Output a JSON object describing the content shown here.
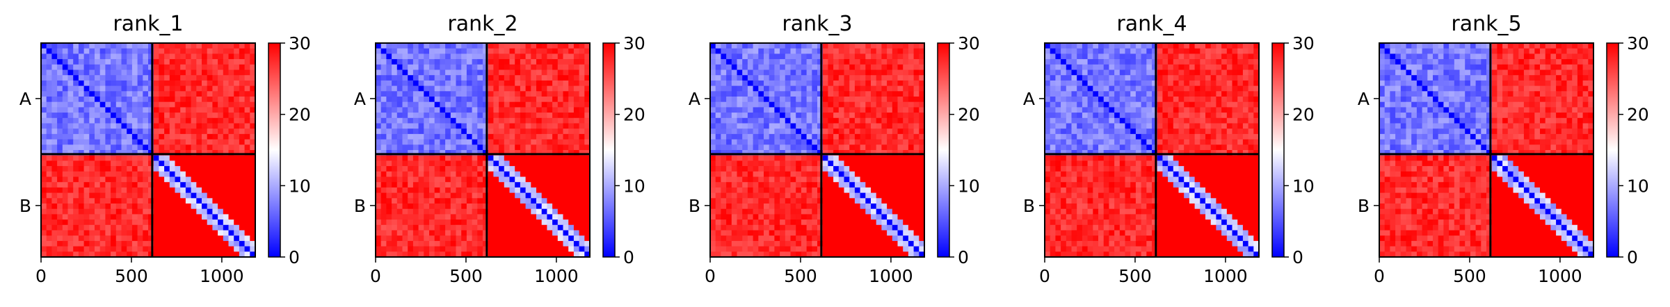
{
  "chart_data": [
    {
      "type": "heatmap",
      "title": "rank_1",
      "chain_labels": [
        "A",
        "B"
      ],
      "chain_split": 615,
      "n_residues": 1185,
      "xticks": [
        0,
        500,
        1000
      ],
      "colorbar": {
        "min": 0,
        "max": 30,
        "ticks": [
          0,
          10,
          20,
          30
        ],
        "colors": [
          "#0000ff",
          "#ffffff",
          "#ff0000"
        ]
      },
      "matrix_summary": {
        "A-A": 7,
        "A-B": 30,
        "B-A": 30,
        "B-B_diagonal": 0,
        "B-B_offdiagonal": 30,
        "B-B_local_blocks": 8
      }
    },
    {
      "type": "heatmap",
      "title": "rank_2",
      "chain_labels": [
        "A",
        "B"
      ],
      "chain_split": 615,
      "n_residues": 1185,
      "xticks": [
        0,
        500,
        1000
      ],
      "colorbar": {
        "min": 0,
        "max": 30,
        "ticks": [
          0,
          10,
          20,
          30
        ],
        "colors": [
          "#0000ff",
          "#ffffff",
          "#ff0000"
        ]
      },
      "matrix_summary": {
        "A-A": 7,
        "A-B": 30,
        "B-A": 30,
        "B-B_diagonal": 0,
        "B-B_offdiagonal": 30,
        "B-B_local_blocks": 8
      }
    },
    {
      "type": "heatmap",
      "title": "rank_3",
      "chain_labels": [
        "A",
        "B"
      ],
      "chain_split": 615,
      "n_residues": 1185,
      "xticks": [
        0,
        500,
        1000
      ],
      "colorbar": {
        "min": 0,
        "max": 30,
        "ticks": [
          0,
          10,
          20,
          30
        ],
        "colors": [
          "#0000ff",
          "#ffffff",
          "#ff0000"
        ]
      },
      "matrix_summary": {
        "A-A": 7,
        "A-B": 30,
        "B-A": 30,
        "B-B_diagonal": 0,
        "B-B_offdiagonal": 30,
        "B-B_local_blocks": 8
      }
    },
    {
      "type": "heatmap",
      "title": "rank_4",
      "chain_labels": [
        "A",
        "B"
      ],
      "chain_split": 615,
      "n_residues": 1185,
      "xticks": [
        0,
        500,
        1000
      ],
      "colorbar": {
        "min": 0,
        "max": 30,
        "ticks": [
          0,
          10,
          20,
          30
        ],
        "colors": [
          "#0000ff",
          "#ffffff",
          "#ff0000"
        ]
      },
      "matrix_summary": {
        "A-A": 7,
        "A-B": 30,
        "B-A": 30,
        "B-B_diagonal": 0,
        "B-B_offdiagonal": 30,
        "B-B_local_blocks": 8
      }
    },
    {
      "type": "heatmap",
      "title": "rank_5",
      "chain_labels": [
        "A",
        "B"
      ],
      "chain_split": 615,
      "n_residues": 1185,
      "xticks": [
        0,
        500,
        1000
      ],
      "colorbar": {
        "min": 0,
        "max": 30,
        "ticks": [
          0,
          10,
          20,
          30
        ],
        "colors": [
          "#0000ff",
          "#ffffff",
          "#ff0000"
        ]
      },
      "matrix_summary": {
        "A-A": 7,
        "A-B": 30,
        "B-A": 30,
        "B-B_diagonal": 0,
        "B-B_offdiagonal": 30,
        "B-B_local_blocks": 8
      }
    }
  ]
}
